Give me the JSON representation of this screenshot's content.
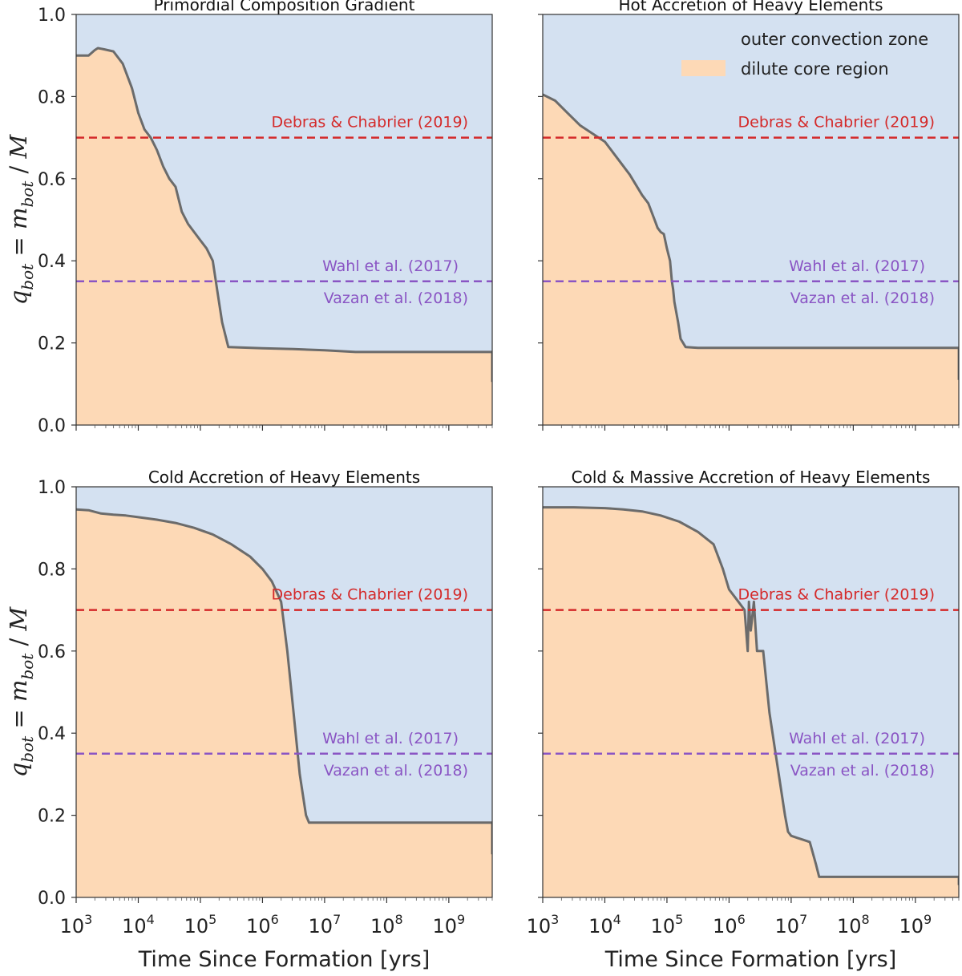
{
  "colors": {
    "outer_zone": "#d4e1f1",
    "core_region": "#fdd9b6",
    "boundary_line": "#6b6b6b",
    "debras_line": "#d42a2a",
    "wahl_vazan_line": "#8a55c4"
  },
  "chart_data": {
    "type": "area",
    "x_scale": "log",
    "xlim": [
      1000,
      5000000000
    ],
    "ylim": [
      0.0,
      1.0
    ],
    "xlabel": "Time Since Formation [yrs]",
    "ylabel": {
      "q": "q",
      "q_sub": "bot",
      "eq": " = ",
      "m": "m",
      "m_sub": "bot",
      "slash": " / ",
      "M": "M"
    },
    "x_tick_labels": [
      {
        "base": "10",
        "exp": "3"
      },
      {
        "base": "10",
        "exp": "4"
      },
      {
        "base": "10",
        "exp": "5"
      },
      {
        "base": "10",
        "exp": "6"
      },
      {
        "base": "10",
        "exp": "7"
      },
      {
        "base": "10",
        "exp": "8"
      },
      {
        "base": "10",
        "exp": "9"
      }
    ],
    "y_tick_labels": [
      "0.0",
      "0.2",
      "0.4",
      "0.6",
      "0.8",
      "1.0"
    ],
    "legend": {
      "position": "top-right",
      "entries": [
        {
          "label": "outer convection zone",
          "color": "#d4e1f1"
        },
        {
          "label": "dilute core region",
          "color": "#fdd9b6"
        }
      ]
    },
    "reference_lines": [
      {
        "labels": [
          "Debras & Chabrier (2019)"
        ],
        "y": 0.7,
        "color": "#d42a2a"
      },
      {
        "labels": [
          "Wahl et al. (2017)",
          "Vazan et al. (2018)"
        ],
        "y": 0.35,
        "color": "#8a55c4"
      }
    ],
    "panels": [
      {
        "title": "Primordial Composition Gradient",
        "series_name": "q_bot",
        "points": [
          [
            3.0,
            0.9
          ],
          [
            3.2,
            0.9
          ],
          [
            3.3,
            0.913
          ],
          [
            3.35,
            0.918
          ],
          [
            3.45,
            0.915
          ],
          [
            3.6,
            0.91
          ],
          [
            3.75,
            0.88
          ],
          [
            3.9,
            0.82
          ],
          [
            4.0,
            0.76
          ],
          [
            4.1,
            0.72
          ],
          [
            4.2,
            0.7
          ],
          [
            4.3,
            0.67
          ],
          [
            4.4,
            0.63
          ],
          [
            4.5,
            0.6
          ],
          [
            4.6,
            0.58
          ],
          [
            4.7,
            0.52
          ],
          [
            4.8,
            0.49
          ],
          [
            4.9,
            0.47
          ],
          [
            5.0,
            0.45
          ],
          [
            5.1,
            0.43
          ],
          [
            5.2,
            0.4
          ],
          [
            5.28,
            0.32
          ],
          [
            5.35,
            0.25
          ],
          [
            5.45,
            0.19
          ],
          [
            6.0,
            0.187
          ],
          [
            6.5,
            0.185
          ],
          [
            7.0,
            0.182
          ],
          [
            7.5,
            0.178
          ],
          [
            8.0,
            0.178
          ],
          [
            8.5,
            0.178
          ],
          [
            9.0,
            0.178
          ],
          [
            9.7,
            0.178
          ],
          [
            9.7,
            0.105
          ]
        ]
      },
      {
        "title": "Hot Accretion of Heavy Elements",
        "series_name": "q_bot",
        "points": [
          [
            3.0,
            0.805
          ],
          [
            3.2,
            0.79
          ],
          [
            3.4,
            0.76
          ],
          [
            3.6,
            0.73
          ],
          [
            3.8,
            0.71
          ],
          [
            4.0,
            0.69
          ],
          [
            4.2,
            0.65
          ],
          [
            4.4,
            0.61
          ],
          [
            4.6,
            0.56
          ],
          [
            4.7,
            0.54
          ],
          [
            4.8,
            0.5
          ],
          [
            4.85,
            0.48
          ],
          [
            4.9,
            0.47
          ],
          [
            4.95,
            0.465
          ],
          [
            5.0,
            0.43
          ],
          [
            5.05,
            0.4
          ],
          [
            5.08,
            0.35
          ],
          [
            5.1,
            0.33
          ],
          [
            5.12,
            0.3
          ],
          [
            5.18,
            0.25
          ],
          [
            5.22,
            0.21
          ],
          [
            5.3,
            0.19
          ],
          [
            5.5,
            0.188
          ],
          [
            6.0,
            0.188
          ],
          [
            7.0,
            0.188
          ],
          [
            8.0,
            0.188
          ],
          [
            9.0,
            0.188
          ],
          [
            9.7,
            0.188
          ],
          [
            9.7,
            0.11
          ]
        ]
      },
      {
        "title": "Cold Accretion of Heavy Elements",
        "series_name": "q_bot",
        "points": [
          [
            3.0,
            0.945
          ],
          [
            3.2,
            0.943
          ],
          [
            3.4,
            0.935
          ],
          [
            3.6,
            0.932
          ],
          [
            3.8,
            0.93
          ],
          [
            4.0,
            0.926
          ],
          [
            4.3,
            0.92
          ],
          [
            4.6,
            0.912
          ],
          [
            4.9,
            0.9
          ],
          [
            5.2,
            0.884
          ],
          [
            5.5,
            0.86
          ],
          [
            5.8,
            0.83
          ],
          [
            6.0,
            0.8
          ],
          [
            6.15,
            0.77
          ],
          [
            6.3,
            0.72
          ],
          [
            6.4,
            0.6
          ],
          [
            6.5,
            0.45
          ],
          [
            6.6,
            0.3
          ],
          [
            6.7,
            0.2
          ],
          [
            6.75,
            0.182
          ],
          [
            7.0,
            0.182
          ],
          [
            8.0,
            0.182
          ],
          [
            9.0,
            0.182
          ],
          [
            9.7,
            0.182
          ],
          [
            9.7,
            0.105
          ]
        ]
      },
      {
        "title": "Cold & Massive Accretion of Heavy Elements",
        "series_name": "q_bot",
        "points": [
          [
            3.0,
            0.95
          ],
          [
            3.5,
            0.95
          ],
          [
            4.0,
            0.948
          ],
          [
            4.3,
            0.945
          ],
          [
            4.6,
            0.94
          ],
          [
            4.9,
            0.93
          ],
          [
            5.2,
            0.915
          ],
          [
            5.5,
            0.89
          ],
          [
            5.75,
            0.86
          ],
          [
            5.9,
            0.8
          ],
          [
            6.0,
            0.75
          ],
          [
            6.1,
            0.73
          ],
          [
            6.25,
            0.7
          ],
          [
            6.3,
            0.6
          ],
          [
            6.32,
            0.72
          ],
          [
            6.35,
            0.65
          ],
          [
            6.4,
            0.72
          ],
          [
            6.45,
            0.6
          ],
          [
            6.55,
            0.6
          ],
          [
            6.65,
            0.45
          ],
          [
            6.75,
            0.35
          ],
          [
            6.8,
            0.3
          ],
          [
            6.85,
            0.25
          ],
          [
            6.9,
            0.2
          ],
          [
            6.95,
            0.16
          ],
          [
            7.0,
            0.15
          ],
          [
            7.1,
            0.145
          ],
          [
            7.2,
            0.14
          ],
          [
            7.3,
            0.135
          ],
          [
            7.4,
            0.08
          ],
          [
            7.45,
            0.05
          ],
          [
            8.0,
            0.05
          ],
          [
            9.0,
            0.05
          ],
          [
            9.7,
            0.05
          ],
          [
            9.7,
            0.03
          ]
        ]
      }
    ]
  }
}
